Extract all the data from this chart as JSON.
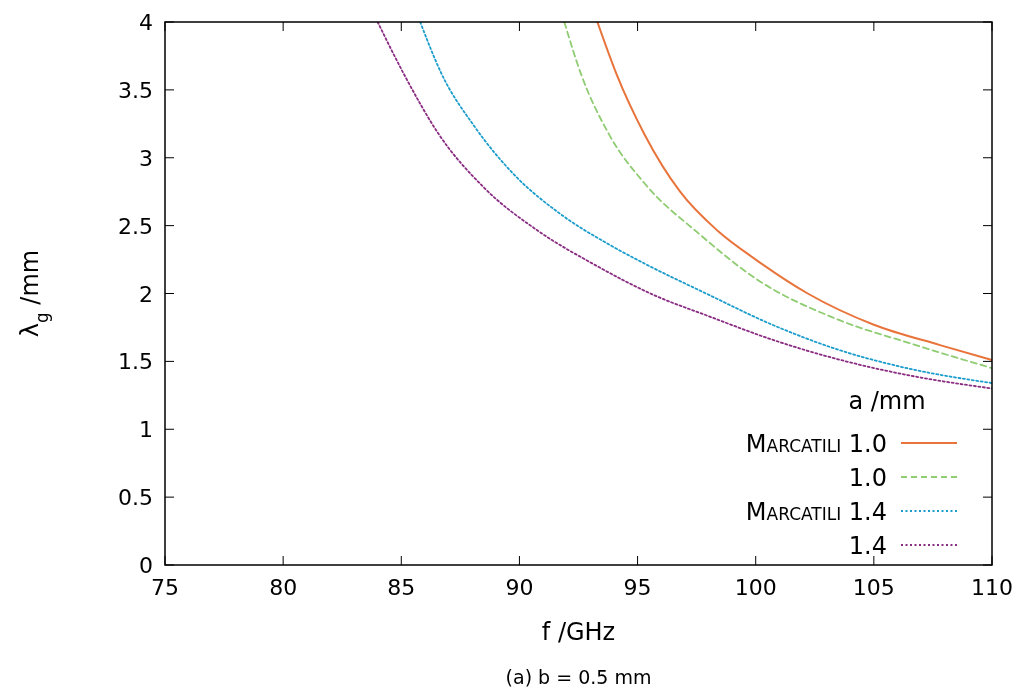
{
  "chart_data": {
    "type": "line",
    "xlabel": "f /GHz",
    "ylabel": "λ$_{g}$ /mm",
    "legend_title": "a /mm",
    "legend": "bottom right",
    "grid": false,
    "xlim": [
      75,
      110
    ],
    "xticks": [
      75,
      80,
      85,
      90,
      95,
      100,
      105,
      110
    ],
    "ylim": [
      0,
      4
    ],
    "yticks": [
      0,
      0.5,
      1,
      1.5,
      2,
      2.5,
      3,
      3.5,
      4
    ],
    "annotations": [
      "(a) b = 0.5 mm"
    ],
    "series": [
      {
        "name": "Marcatili 1.0",
        "color": "#e8743b",
        "line_style": "solid",
        "x": [
          93.3,
          94.1,
          95.3,
          96.8,
          98.4,
          100.0,
          102.2,
          105.0,
          107.8,
          110
        ],
        "values": [
          4.0,
          3.62,
          3.17,
          2.75,
          2.46,
          2.25,
          2.0,
          1.77,
          1.62,
          1.51
        ]
      },
      {
        "name": "1.0",
        "color": "#8fcc72",
        "line_style": "dashed",
        "x": [
          91.9,
          92.6,
          93.8,
          95.3,
          97.6,
          100.0,
          103.6,
          106.4,
          110
        ],
        "values": [
          4.0,
          3.62,
          3.17,
          2.81,
          2.44,
          2.11,
          1.8,
          1.64,
          1.45
        ]
      },
      {
        "name": "Marcatili 1.4",
        "color": "#1a9ccc",
        "line_style": "dotted",
        "x": [
          85.8,
          86.7,
          88.1,
          89.75,
          91.7,
          93.8,
          95.3,
          97.9,
          100.7,
          103.6,
          106.4,
          110
        ],
        "values": [
          4.0,
          3.62,
          3.23,
          2.88,
          2.59,
          2.36,
          2.22,
          2.0,
          1.77,
          1.58,
          1.45,
          1.34
        ]
      },
      {
        "name": "1.4",
        "color": "#8a2c82",
        "line_style": "dotted",
        "x": [
          84.0,
          85.1,
          86.6,
          88.5,
          90.8,
          93.1,
          95.8,
          97.9,
          100.7,
          103.6,
          106.4,
          110
        ],
        "values": [
          4.0,
          3.62,
          3.17,
          2.78,
          2.46,
          2.22,
          1.98,
          1.84,
          1.66,
          1.51,
          1.4,
          1.3
        ]
      }
    ]
  }
}
